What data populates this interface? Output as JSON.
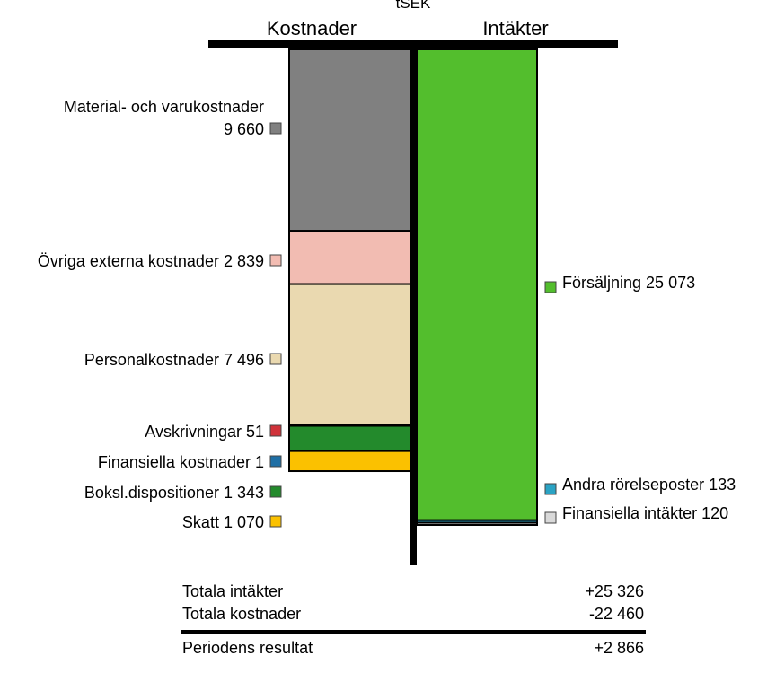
{
  "chart_data": {
    "type": "bar",
    "unit": "tSEK",
    "columns": [
      "Kostnader",
      "Intäkter"
    ],
    "kostnader": [
      {
        "label": "Material- och varukostnader",
        "label_lines": [
          "Material- och varukostnader",
          "9 660"
        ],
        "value": 9660,
        "color": "#808080"
      },
      {
        "label": "Övriga externa kostnader",
        "label_lines": [
          "Övriga externa kostnader 2 839"
        ],
        "value": 2839,
        "color": "#f2bcb2"
      },
      {
        "label": "Personalkostnader",
        "label_lines": [
          "Personalkostnader 7 496"
        ],
        "value": 7496,
        "color": "#ead9b0"
      },
      {
        "label": "Avskrivningar",
        "label_lines": [
          "Avskrivningar 51"
        ],
        "value": 51,
        "color": "#d0323a"
      },
      {
        "label": "Finansiella kostnader",
        "label_lines": [
          "Finansiella kostnader 1"
        ],
        "value": 1,
        "color": "#1f6fa5"
      },
      {
        "label": "Boksl.dispositioner",
        "label_lines": [
          "Boksl.dispositioner 1 343"
        ],
        "value": 1343,
        "color": "#238a2c"
      },
      {
        "label": "Skatt",
        "label_lines": [
          "Skatt 1 070"
        ],
        "value": 1070,
        "color": "#fbc100"
      }
    ],
    "intakter": [
      {
        "label": "Försäljning",
        "label_lines": [
          "Försäljning 25 073"
        ],
        "value": 25073,
        "color": "#53be2d"
      },
      {
        "label": "Andra rörelseposter",
        "label_lines": [
          "Andra rörelseposter 133"
        ],
        "value": 133,
        "color": "#2aa3c4"
      },
      {
        "label": "Finansiella intäkter",
        "label_lines": [
          "Finansiella intäkter 120"
        ],
        "value": 120,
        "color": "#d9d9d9"
      }
    ],
    "summary": [
      {
        "label": "Totala intäkter",
        "value": "+25 326"
      },
      {
        "label": "Totala kostnader",
        "value": "-22 460"
      },
      {
        "label": "Periodens resultat",
        "value": "+2 866"
      }
    ]
  }
}
